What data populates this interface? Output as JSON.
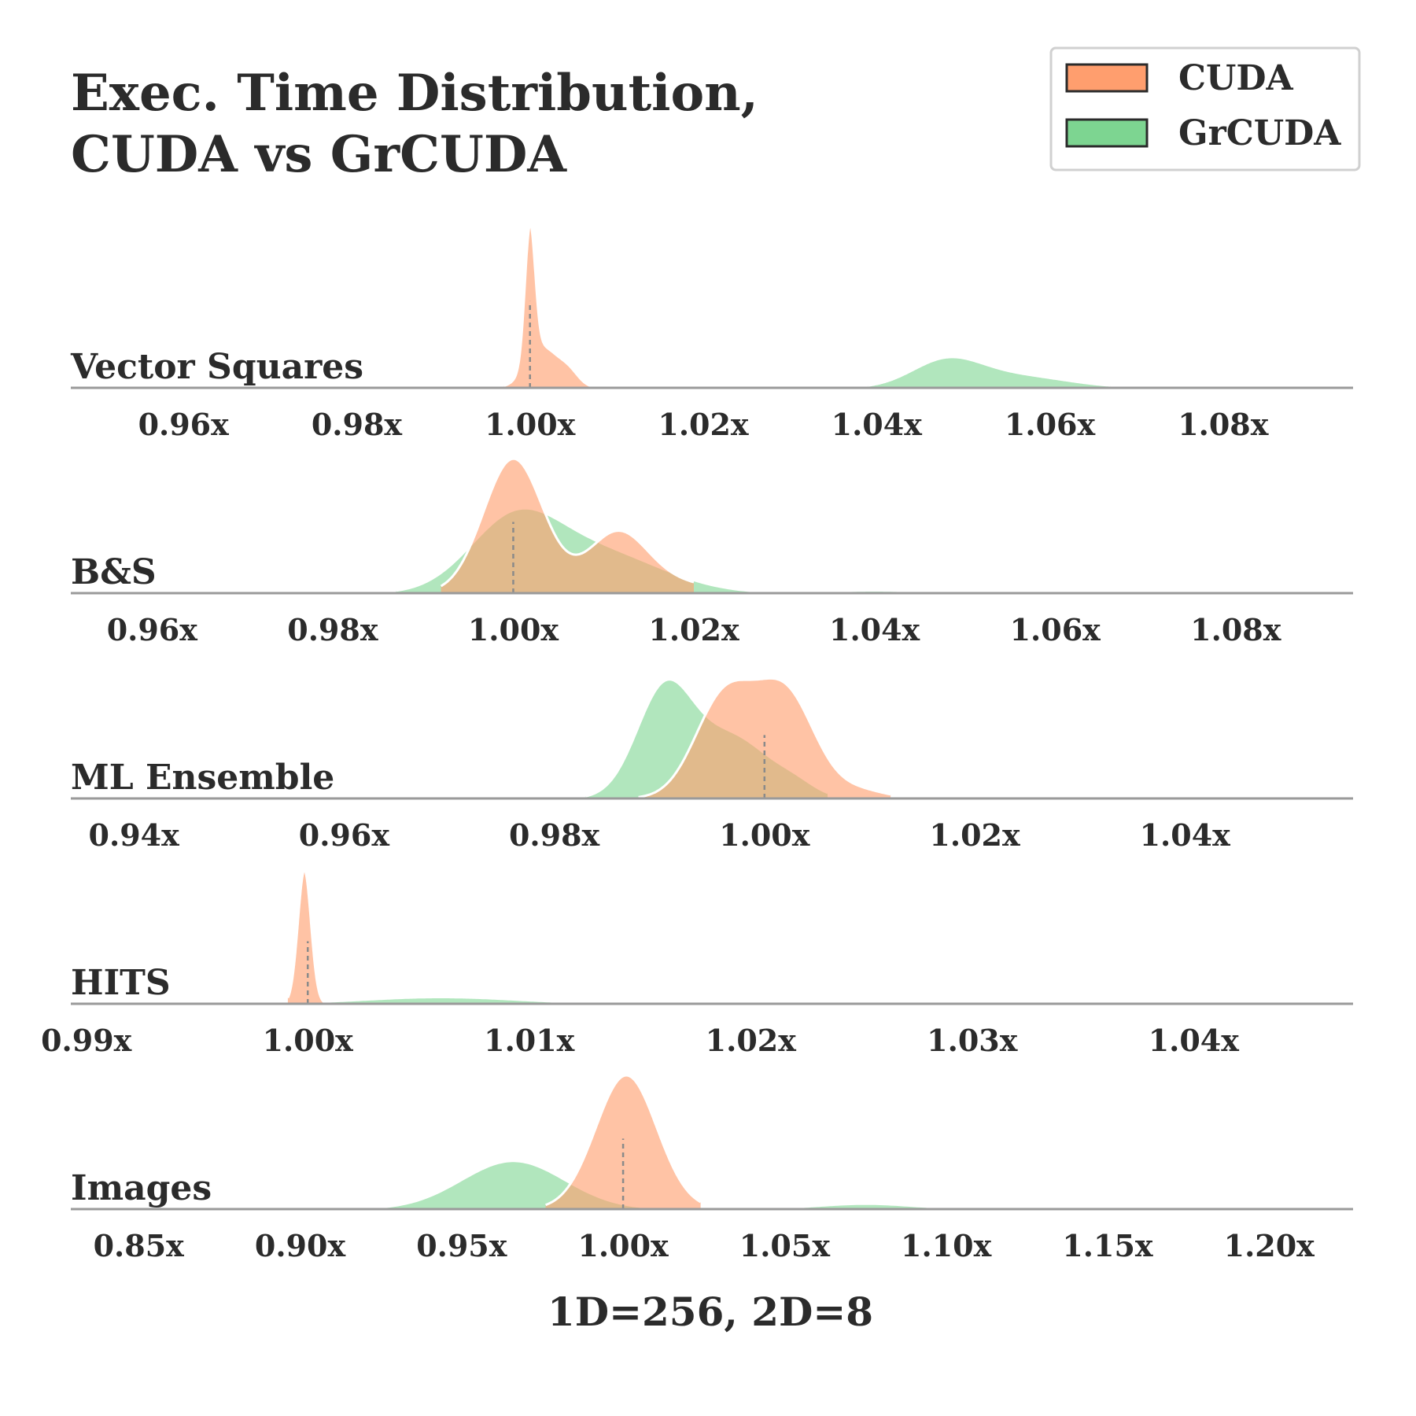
{
  "title_lines": [
    "Exec. Time Distribution,",
    "CUDA vs GrCUDA"
  ],
  "xlabel": "1D=256, 2D=8",
  "legend": [
    {
      "label": "CUDA",
      "color": "#ff9e6e"
    },
    {
      "label": "GrCUDA",
      "color": "#7dd591"
    }
  ],
  "chart_data": {
    "type": "area",
    "title": "Exec. Time Distribution, CUDA vs GrCUDA",
    "xlabel": "1D=256, 2D=8",
    "legend_position": "top-right",
    "grid": false,
    "panels": [
      {
        "label": "Vector Squares",
        "xlim": [
          0.947,
          1.095
        ],
        "ticks": [
          0.96,
          0.98,
          1.0,
          1.02,
          1.04,
          1.06,
          1.08
        ],
        "tick_labels": [
          "0.96x",
          "0.98x",
          "1.00x",
          "1.02x",
          "1.04x",
          "1.06x",
          "1.08x"
        ],
        "cuda_median": 1.0,
        "series": [
          {
            "name": "CUDA",
            "color": "#ff9e6e",
            "peaks": [
              {
                "mu": 1.0,
                "sigma": 0.0006,
                "h": 1.0
              },
              {
                "mu": 1.0014,
                "sigma": 0.0018,
                "h": 0.3
              },
              {
                "mu": 1.0045,
                "sigma": 0.0012,
                "h": 0.1
              }
            ],
            "range": [
              0.997,
              1.008
            ]
          },
          {
            "name": "GrCUDA",
            "color": "#7dd591",
            "peaks": [
              {
                "mu": 1.048,
                "sigma": 0.004,
                "h": 0.19
              },
              {
                "mu": 1.056,
                "sigma": 0.006,
                "h": 0.09
              }
            ],
            "range": [
              1.039,
              1.067
            ]
          }
        ]
      },
      {
        "label": "B&S",
        "xlim": [
          0.951,
          1.093
        ],
        "ticks": [
          0.96,
          0.98,
          1.0,
          1.02,
          1.04,
          1.06,
          1.08
        ],
        "tick_labels": [
          "0.96x",
          "0.98x",
          "1.00x",
          "1.02x",
          "1.04x",
          "1.06x",
          "1.08x"
        ],
        "cuda_median": 1.0,
        "series": [
          {
            "name": "CUDA",
            "color": "#ff9e6e",
            "peaks": [
              {
                "mu": 1.0,
                "sigma": 0.0033,
                "h": 1.0
              },
              {
                "mu": 1.0115,
                "sigma": 0.0032,
                "h": 0.38
              },
              {
                "mu": 1.015,
                "sigma": 0.006,
                "h": 0.1
              }
            ],
            "range": [
              0.992,
              1.02
            ]
          },
          {
            "name": "GrCUDA",
            "color": "#7dd591",
            "peaks": [
              {
                "mu": 1.0,
                "sigma": 0.005,
                "h": 0.5
              },
              {
                "mu": 1.0095,
                "sigma": 0.007,
                "h": 0.3
              },
              {
                "mu": 1.04,
                "sigma": 0.005,
                "h": 0.02
              }
            ],
            "range": [
              0.987,
              1.046
            ]
          }
        ]
      },
      {
        "label": "ML Ensemble",
        "xlim": [
          0.934,
          1.056
        ],
        "ticks": [
          0.94,
          0.96,
          0.98,
          1.0,
          1.02,
          1.04
        ],
        "tick_labels": [
          "0.94x",
          "0.96x",
          "0.98x",
          "1.00x",
          "1.02x",
          "1.04x"
        ],
        "cuda_median": 1.0,
        "series": [
          {
            "name": "CUDA",
            "color": "#ff9e6e",
            "peaks": [
              {
                "mu": 0.9962,
                "sigma": 0.0028,
                "h": 0.75
              },
              {
                "mu": 1.002,
                "sigma": 0.0028,
                "h": 0.77
              },
              {
                "mu": 1.009,
                "sigma": 0.0025,
                "h": 0.06
              }
            ],
            "range": [
              0.988,
              1.012
            ]
          },
          {
            "name": "GrCUDA",
            "color": "#7dd591",
            "peaks": [
              {
                "mu": 0.9905,
                "sigma": 0.0027,
                "h": 0.8
              },
              {
                "mu": 0.997,
                "sigma": 0.0035,
                "h": 0.45
              },
              {
                "mu": 1.003,
                "sigma": 0.002,
                "h": 0.08
              }
            ],
            "range": [
              0.983,
              1.006
            ]
          }
        ]
      },
      {
        "label": "HITS",
        "xlim": [
          0.9893,
          1.0472
        ],
        "ticks": [
          0.99,
          1.0,
          1.01,
          1.02,
          1.03,
          1.04
        ],
        "tick_labels": [
          "0.99x",
          "1.00x",
          "1.01x",
          "1.02x",
          "1.03x",
          "1.04x"
        ],
        "cuda_median": 1.0,
        "series": [
          {
            "name": "CUDA",
            "color": "#ff9e6e",
            "peaks": [
              {
                "mu": 0.99985,
                "sigma": 0.0003,
                "h": 1.0
              }
            ],
            "range": [
              0.9991,
              1.0012
            ]
          },
          {
            "name": "GrCUDA",
            "color": "#7dd591",
            "peaks": [
              {
                "mu": 1.006,
                "sigma": 0.0035,
                "h": 0.05
              }
            ],
            "range": [
              0.9985,
              1.016
            ]
          }
        ]
      },
      {
        "label": "Images",
        "xlim": [
          0.829,
          1.226
        ],
        "ticks": [
          0.85,
          0.9,
          0.95,
          1.0,
          1.05,
          1.1,
          1.15,
          1.2
        ],
        "tick_labels": [
          "0.85x",
          "0.90x",
          "0.95x",
          "1.00x",
          "1.05x",
          "1.10x",
          "1.15x",
          "1.20x"
        ],
        "cuda_median": 1.0,
        "series": [
          {
            "name": "CUDA",
            "color": "#ff9e6e",
            "peaks": [
              {
                "mu": 1.001,
                "sigma": 0.0095,
                "h": 1.0
              }
            ],
            "range": [
              0.976,
              1.024
            ]
          },
          {
            "name": "GrCUDA",
            "color": "#7dd591",
            "peaks": [
              {
                "mu": 0.966,
                "sigma": 0.016,
                "h": 0.36
              },
              {
                "mu": 1.075,
                "sigma": 0.015,
                "h": 0.04
              }
            ],
            "range": [
              0.913,
              1.11
            ]
          }
        ]
      }
    ]
  }
}
